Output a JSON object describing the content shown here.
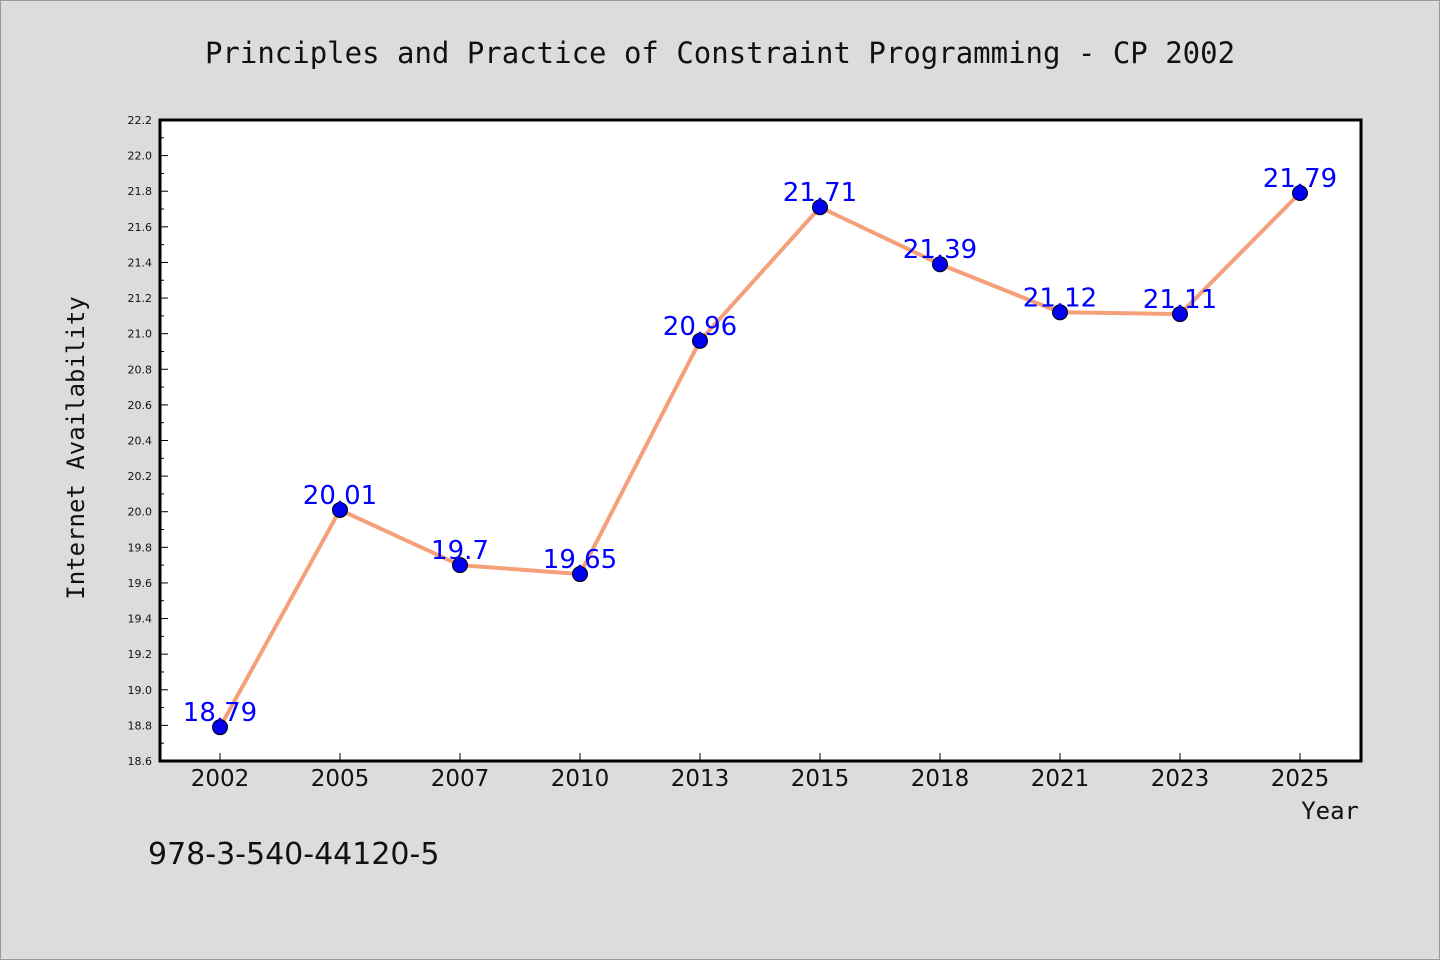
{
  "chart_data": {
    "type": "line",
    "title": "Principles and Practice of Constraint Programming - CP 2002",
    "xlabel": "Year",
    "ylabel": "Internet Availability",
    "categories": [
      "2002",
      "2005",
      "2007",
      "2010",
      "2013",
      "2015",
      "2018",
      "2021",
      "2023",
      "2025"
    ],
    "series": [
      {
        "values": [
          18.79,
          20.01,
          19.7,
          19.65,
          20.96,
          21.71,
          21.39,
          21.12,
          21.11,
          21.79
        ],
        "labels": [
          "18.79",
          "20.01",
          "19.7",
          "19.65",
          "20.96",
          "21.71",
          "21.39",
          "21.12",
          "21.11",
          "21.79"
        ],
        "line_color": "#f4a07a",
        "marker_color": "#0000ee"
      }
    ],
    "ylim": [
      18.6,
      22.2
    ],
    "yticks": [
      "18.6",
      "18.8",
      "19.0",
      "19.2",
      "19.4",
      "19.6",
      "19.8",
      "20.0",
      "20.2",
      "20.4",
      "20.6",
      "20.8",
      "21.0",
      "21.2",
      "21.4",
      "21.6",
      "21.8",
      "22.0",
      "22.2"
    ],
    "grid": false
  },
  "footer": {
    "code": "978-3-540-44120-5"
  },
  "colors": {
    "background": "#dcdcdc",
    "plot_background": "#ffffff",
    "data_label": "#0000ff"
  }
}
